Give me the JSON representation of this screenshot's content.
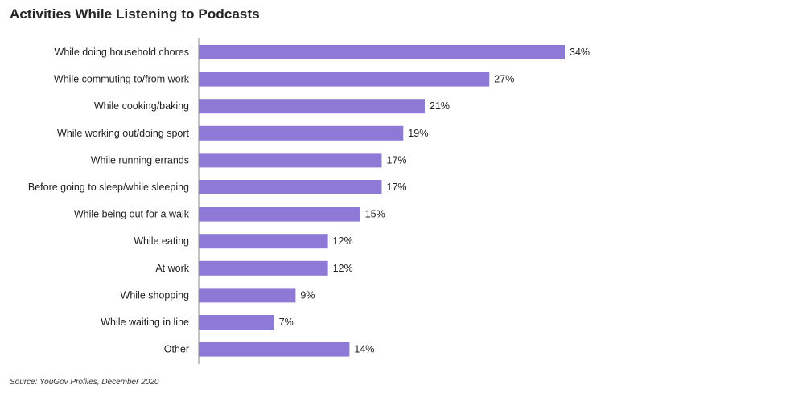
{
  "chart_data": {
    "type": "bar",
    "orientation": "horizontal",
    "title": "Activities While Listening to Podcasts",
    "categories": [
      "While doing household chores",
      "While commuting to/from work",
      "While cooking/baking",
      "While working out/doing sport",
      "While running errands",
      "Before going to sleep/while sleeping",
      "While being out for a walk",
      "While eating",
      "At work",
      "While shopping",
      "While waiting in line",
      "Other"
    ],
    "values": [
      34,
      27,
      21,
      19,
      17,
      17,
      15,
      12,
      12,
      9,
      7,
      14
    ],
    "value_labels": [
      "34%",
      "27%",
      "21%",
      "19%",
      "17%",
      "17%",
      "15%",
      "12%",
      "12%",
      "9%",
      "7%",
      "14%"
    ],
    "xlim": [
      0,
      34
    ],
    "bar_color": "#8e79d6",
    "axis_color": "#8a8a8a",
    "grid": false,
    "legend": "none"
  },
  "source": "Source: YouGov Profiles, December 2020"
}
